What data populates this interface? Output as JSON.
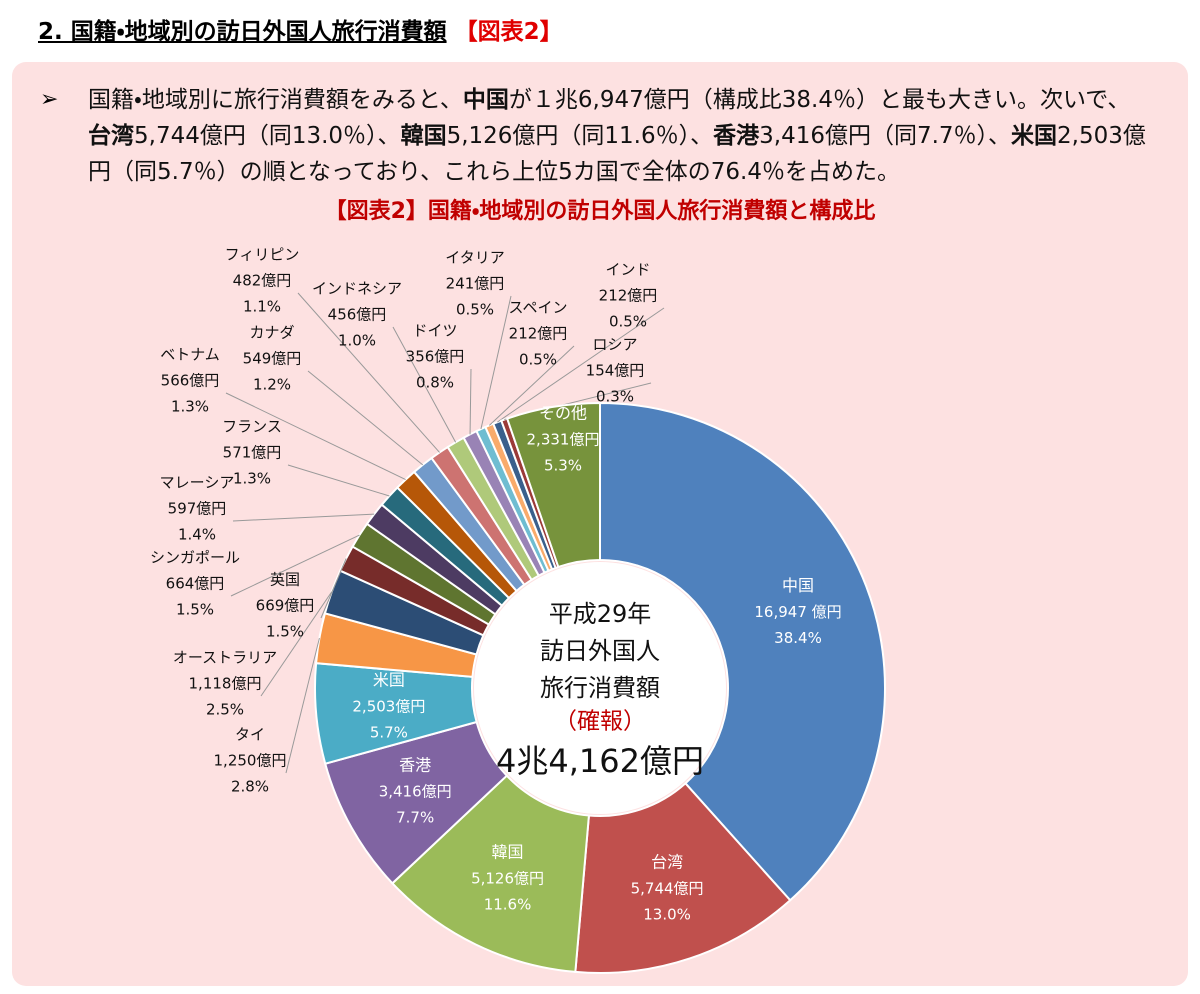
{
  "header": {
    "title": "2. 国籍・地域別の訪日外国人旅行消費額",
    "tag": "【図表2】"
  },
  "paragraph": [
    {
      "text": "国籍・地域別に旅行消費額をみると、",
      "bold": false
    },
    {
      "text": "中国",
      "bold": true
    },
    {
      "text": "が１兆6,947億円（構成比38.4％）と最も大きい。次いで、",
      "bold": false
    },
    {
      "text": "台湾",
      "bold": true
    },
    {
      "text": "5,744億円（同13.0％）、",
      "bold": false
    },
    {
      "text": "韓国",
      "bold": true
    },
    {
      "text": "5,126億円（同11.6％）、",
      "bold": false
    },
    {
      "text": "香港",
      "bold": true
    },
    {
      "text": "3,416億円（同7.7％）、",
      "bold": false
    },
    {
      "text": "米国",
      "bold": true
    },
    {
      "text": "2,503億円（同5.7％）の順となっており、これら上位5カ国で全体の76.4％を占めた。",
      "bold": false
    }
  ],
  "chart_data": {
    "type": "donut",
    "title": "【図表2】国籍・地域別の訪日外国人旅行消費額と構成比",
    "categories": [
      "中国",
      "台湾",
      "韓国",
      "香港",
      "米国",
      "タイ",
      "オーストラリア",
      "英国",
      "シンガポール",
      "マレーシア",
      "フランス",
      "ベトナム",
      "カナダ",
      "フィリピン",
      "インドネシア",
      "ドイツ",
      "イタリア",
      "スペイン",
      "インド",
      "ロシア",
      "その他"
    ],
    "values": [
      16947,
      5744,
      5126,
      3416,
      2503,
      1250,
      1118,
      669,
      664,
      597,
      571,
      566,
      549,
      482,
      456,
      356,
      241,
      212,
      212,
      154,
      2331
    ],
    "value_labels": [
      "16,947 億円",
      "5,744億円",
      "5,126億円",
      "3,416億円",
      "2,503億円",
      "1,250億円",
      "1,118億円",
      "669億円",
      "664億円",
      "597億円",
      "571億円",
      "566億円",
      "549億円",
      "482億円",
      "456億円",
      "356億円",
      "241億円",
      "212億円",
      "212億円",
      "154億円",
      "2,331億円"
    ],
    "shares": [
      {
        "value": 38.4,
        "label": "38.4%"
      },
      {
        "value": 13.0,
        "label": "13.0%"
      },
      {
        "value": 11.6,
        "label": "11.6%"
      },
      {
        "value": 7.7,
        "label": "7.7%"
      },
      {
        "value": 5.7,
        "label": "5.7%"
      },
      {
        "value": 2.8,
        "label": "2.8%"
      },
      {
        "value": 2.5,
        "label": "2.5%"
      },
      {
        "value": 1.5,
        "label": "1.5%"
      },
      {
        "value": 1.5,
        "label": "1.5%"
      },
      {
        "value": 1.4,
        "label": "1.4%"
      },
      {
        "value": 1.3,
        "label": "1.3%"
      },
      {
        "value": 1.3,
        "label": "1.3%"
      },
      {
        "value": 1.2,
        "label": "1.2%"
      },
      {
        "value": 1.1,
        "label": "1.1%"
      },
      {
        "value": 1.0,
        "label": "1.0%"
      },
      {
        "value": 0.8,
        "label": "0.8%"
      },
      {
        "value": 0.5,
        "label": "0.5%"
      },
      {
        "value": 0.5,
        "label": "0.5%"
      },
      {
        "value": 0.5,
        "label": "0.5%"
      },
      {
        "value": 0.3,
        "label": "0.3%"
      },
      {
        "value": 5.3,
        "label": "5.3%"
      }
    ],
    "colors": [
      "#4f81bd",
      "#c0504d",
      "#9bbb59",
      "#8064a2",
      "#4bacc6",
      "#f79646",
      "#2c4d75",
      "#772c2a",
      "#5f7530",
      "#4d3b62",
      "#276a7c",
      "#b65708",
      "#729aca",
      "#cd7371",
      "#afc97a",
      "#9983b5",
      "#6fbdd1",
      "#f9ab6b",
      "#3a5f8c",
      "#9b3a38",
      "#77933c"
    ],
    "center_lines": [
      "平成29年",
      "訪日外国人",
      "旅行消費額"
    ],
    "center_note": "（確報）",
    "total": 44162,
    "total_label": "4兆4,162億円"
  }
}
